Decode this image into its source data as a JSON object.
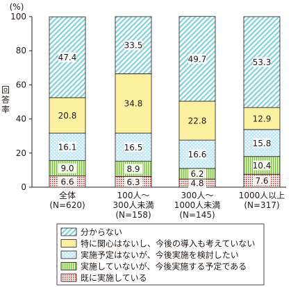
{
  "chart_data": {
    "type": "stacked-bar",
    "unit": "(%)",
    "ylabel": "回答率",
    "ylim": [
      0,
      100
    ],
    "yticks": [
      0,
      20,
      40,
      60,
      80,
      100
    ],
    "categories": [
      [
        "全体",
        "(N=620)"
      ],
      [
        "100人～",
        "300人未満",
        "(N=158)"
      ],
      [
        "300人～",
        "1000人未満",
        "(N=145)"
      ],
      [
        "1000人以上",
        "(N=317)"
      ]
    ],
    "series": [
      {
        "name": "既に実施している",
        "values": [
          6.6,
          6.3,
          4.8,
          7.6
        ],
        "pattern": "grid",
        "color": "#f7c6c3",
        "line": "#e8332a"
      },
      {
        "name": "実施していないが、今後実施する予定である",
        "values": [
          9.0,
          8.9,
          6.2,
          10.4
        ],
        "pattern": "vstripe",
        "color": "#c8e6a0",
        "line": "#7cc240"
      },
      {
        "name": "実施予定はないが、今後実施を検討したい",
        "values": [
          16.1,
          16.5,
          16.6,
          15.8
        ],
        "pattern": "dots",
        "color": "#b9e3f7",
        "line": "#2aa7e0"
      },
      {
        "name": "特に関心はないし、今後の導入も考えていない",
        "values": [
          20.8,
          34.8,
          22.8,
          12.9
        ],
        "pattern": "solid",
        "color": "#fdf0a0",
        "line": "#fdf0a0"
      },
      {
        "name": "分からない",
        "values": [
          47.4,
          33.5,
          49.7,
          53.3
        ],
        "pattern": "diag",
        "color": "#bde6ec",
        "line": "#3fb6c8"
      }
    ],
    "legend_order": [
      "分からない",
      "特に関心はないし、今後の導入も考えていない",
      "実施予定はないが、今後実施を検討したい",
      "実施していないが、今後実施する予定である",
      "既に実施している"
    ],
    "legend_position": "bottom"
  }
}
